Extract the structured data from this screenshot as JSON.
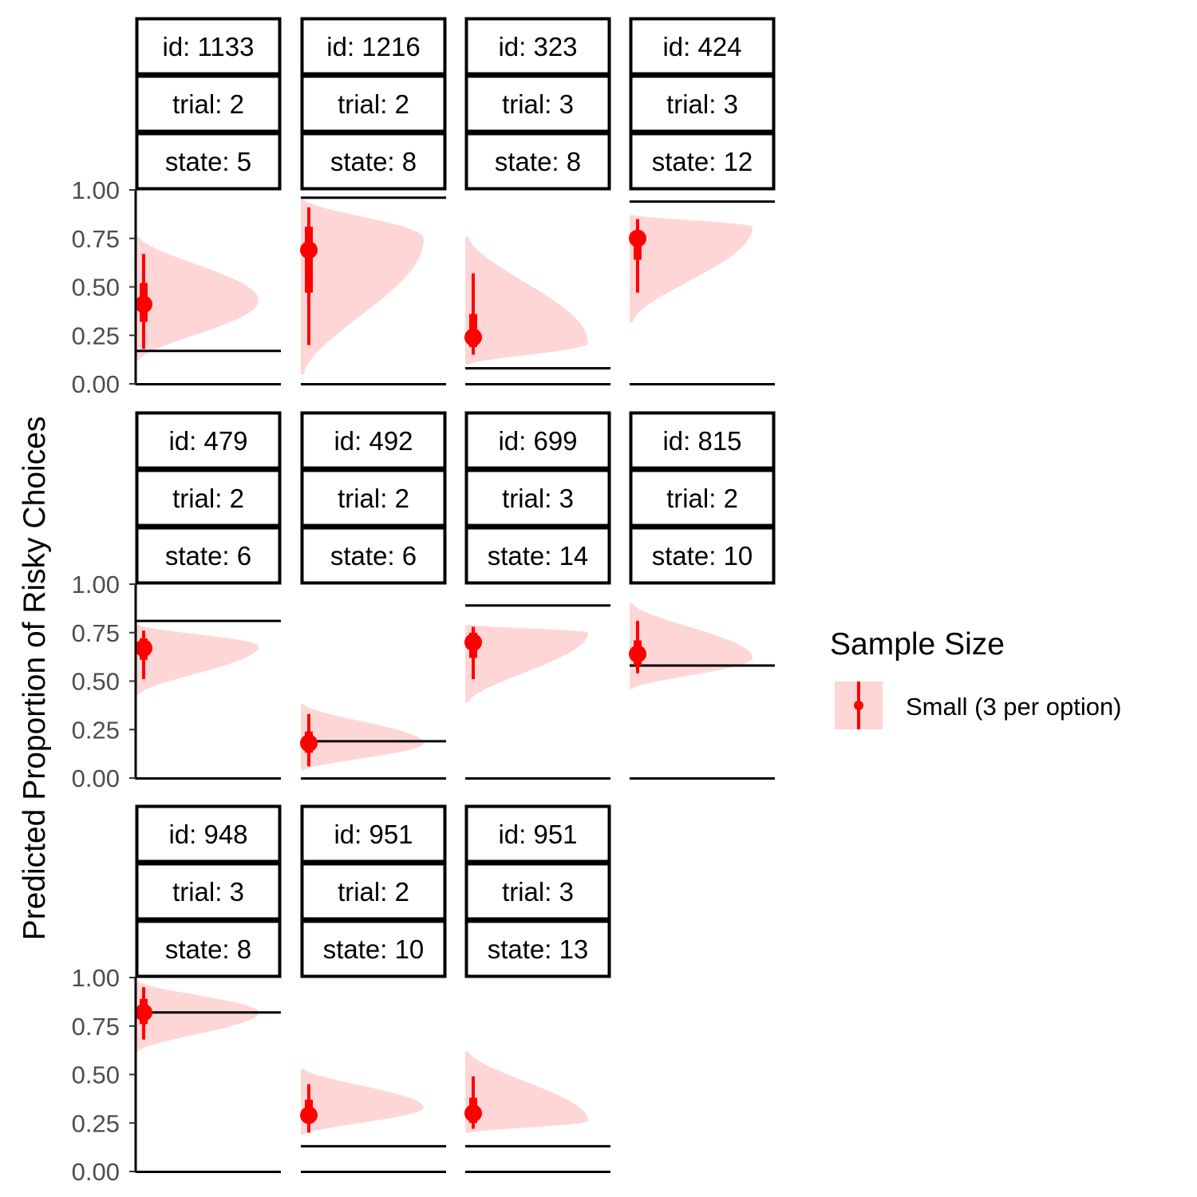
{
  "chart_data": {
    "type": "halfeye",
    "ylabel": "Predicted Proportion of Risky Choices",
    "xlabel": "",
    "ylim": [
      0,
      1
    ],
    "yticks": [
      0,
      0.25,
      0.5,
      0.75,
      1
    ],
    "ytick_labels": [
      "0.00",
      "0.25",
      "0.50",
      "0.75",
      "1.00"
    ],
    "grid": false,
    "legend": {
      "title": "Sample Size",
      "position": "right",
      "entries": [
        {
          "label": "Small (3 per option)",
          "color": "#ff0000",
          "fill": "#ffd6d6"
        }
      ]
    },
    "colors": {
      "point": "#ff0000",
      "density": "#ffd6d6",
      "reference_line": "#000000"
    },
    "facet_strip_labels": [
      "id",
      "trial",
      "state"
    ],
    "panels": [
      {
        "id": "id: 1133",
        "trial": "trial: 2",
        "state": "state: 5",
        "reference": 0.17,
        "point": 0.41,
        "interval_66": [
          0.32,
          0.52
        ],
        "interval_95": [
          0.18,
          0.67
        ],
        "density_range": [
          0.12,
          0.76
        ],
        "density_mode": 0.43
      },
      {
        "id": "id: 1216",
        "trial": "trial: 2",
        "state": "state: 8",
        "reference": 0.96,
        "point": 0.69,
        "interval_66": [
          0.47,
          0.81
        ],
        "interval_95": [
          0.2,
          0.91
        ],
        "density_range": [
          0.05,
          0.95
        ],
        "density_mode": 0.75
      },
      {
        "id": "id: 323",
        "trial": "trial: 3",
        "state": "state: 8",
        "reference": 0.08,
        "point": 0.24,
        "interval_66": [
          0.19,
          0.36
        ],
        "interval_95": [
          0.15,
          0.57
        ],
        "density_range": [
          0.1,
          0.76
        ],
        "density_mode": 0.21
      },
      {
        "id": "id: 424",
        "trial": "trial: 3",
        "state": "state: 12",
        "reference": 0.94,
        "point": 0.75,
        "interval_66": [
          0.64,
          0.79
        ],
        "interval_95": [
          0.47,
          0.85
        ],
        "density_range": [
          0.32,
          0.87
        ],
        "density_mode": 0.81
      },
      {
        "id": "id: 479",
        "trial": "trial: 2",
        "state": "state: 6",
        "reference": 0.81,
        "point": 0.67,
        "interval_66": [
          0.61,
          0.72
        ],
        "interval_95": [
          0.51,
          0.76
        ],
        "density_range": [
          0.43,
          0.79
        ],
        "density_mode": 0.68
      },
      {
        "id": "id: 492",
        "trial": "trial: 2",
        "state": "state: 6",
        "reference": 0.19,
        "point": 0.18,
        "interval_66": [
          0.13,
          0.24
        ],
        "interval_95": [
          0.06,
          0.33
        ],
        "density_range": [
          0.04,
          0.38
        ],
        "density_mode": 0.18
      },
      {
        "id": "id: 699",
        "trial": "trial: 3",
        "state": "state: 14",
        "reference": 0.89,
        "point": 0.7,
        "interval_66": [
          0.62,
          0.75
        ],
        "interval_95": [
          0.51,
          0.78
        ],
        "density_range": [
          0.39,
          0.79
        ],
        "density_mode": 0.75
      },
      {
        "id": "id: 815",
        "trial": "trial: 2",
        "state": "state: 10",
        "reference": 0.58,
        "point": 0.64,
        "interval_66": [
          0.58,
          0.71
        ],
        "interval_95": [
          0.54,
          0.81
        ],
        "density_range": [
          0.46,
          0.9
        ],
        "density_mode": 0.62
      },
      {
        "id": "id: 948",
        "trial": "trial: 3",
        "state": "state: 8",
        "reference": 0.82,
        "point": 0.82,
        "interval_66": [
          0.76,
          0.89
        ],
        "interval_95": [
          0.68,
          0.95
        ],
        "density_range": [
          0.62,
          0.98
        ],
        "density_mode": 0.82
      },
      {
        "id": "id: 951",
        "trial": "trial: 2",
        "state": "state: 10",
        "reference": 0.13,
        "point": 0.29,
        "interval_66": [
          0.25,
          0.37
        ],
        "interval_95": [
          0.2,
          0.45
        ],
        "density_range": [
          0.19,
          0.53
        ],
        "density_mode": 0.33
      },
      {
        "id": "id: 951",
        "trial": "trial: 3",
        "state": "state: 13",
        "reference": 0.13,
        "point": 0.3,
        "interval_66": [
          0.25,
          0.38
        ],
        "interval_95": [
          0.22,
          0.49
        ],
        "density_range": [
          0.2,
          0.62
        ],
        "density_mode": 0.26
      }
    ]
  }
}
